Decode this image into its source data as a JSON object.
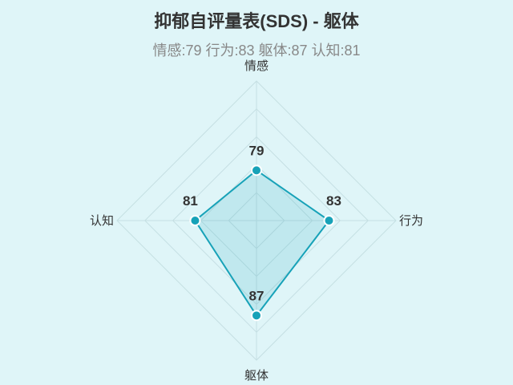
{
  "title": "抑郁自评量表(SDS) - 躯体",
  "subtitle": "情感:79 行为:83 躯体:87 认知:81",
  "chart_data": {
    "type": "radar",
    "title": "抑郁自评量表(SDS) - 躯体",
    "categories": [
      "情感",
      "行为",
      "躯体",
      "认知"
    ],
    "values": [
      79,
      83,
      87,
      81
    ],
    "range": [
      70,
      95
    ],
    "rings": 5,
    "grid": true,
    "colors": {
      "line": "#17a2b8",
      "fill": "#17a2b8",
      "grid": "#c5dfe3",
      "label": "#333333"
    }
  }
}
